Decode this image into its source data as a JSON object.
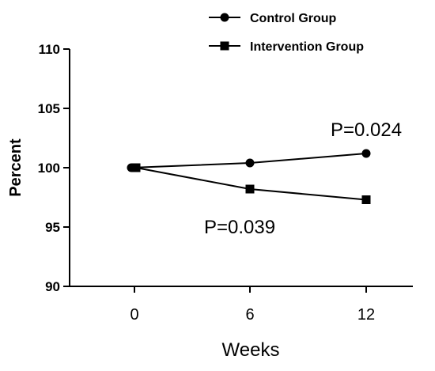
{
  "chart_data": {
    "type": "line",
    "xlabel": "Weeks",
    "ylabel": "Percent",
    "x": [
      0,
      6,
      12
    ],
    "xticks": [
      "0",
      "6",
      "12"
    ],
    "ylim": [
      90,
      110
    ],
    "yticks": [
      "90",
      "95",
      "100",
      "105",
      "110"
    ],
    "grid": false,
    "legend_position": "top-right",
    "series": [
      {
        "name": "Control Group",
        "marker": "circle",
        "color": "#000000",
        "values": [
          100,
          100.4,
          101.2
        ]
      },
      {
        "name": "Intervention Group",
        "marker": "square",
        "color": "#000000",
        "values": [
          100,
          98.2,
          97.3
        ]
      }
    ],
    "annotations": [
      {
        "text": "P=0.024",
        "series": "Control Group"
      },
      {
        "text": "P=0.039",
        "series": "Intervention Group"
      }
    ]
  }
}
